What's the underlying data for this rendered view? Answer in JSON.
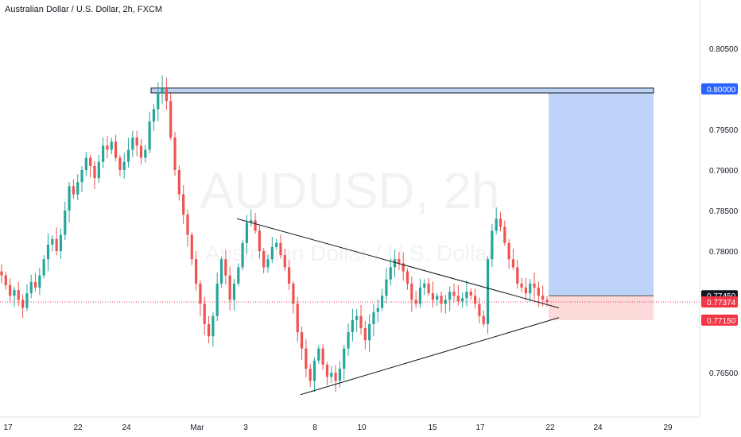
{
  "header": {
    "title": "Australian Dollar / U.S. Dollar, 2h, FXCM"
  },
  "watermark": {
    "symbol": "AUDUSD, 2h",
    "name": "Australian Dollar / U.S. Dollar"
  },
  "colors": {
    "up": "#26a69a",
    "down": "#ef5350",
    "target_zone": "#b3cbf8",
    "stop_zone": "#fcd6d6",
    "target_label_bg": "#2962ff",
    "stop_label_bg": "#f23645",
    "entry_label_bg": "#131722",
    "current_price_line": "#f23645",
    "resistance_box": "#bdd2f5",
    "trendline": "#131722"
  },
  "chart_data": {
    "type": "candlestick",
    "title": "Australian Dollar / U.S. Dollar, 2h, FXCM",
    "ylim": [
      0.761,
      0.809
    ],
    "y_ticks": [
      "0.80500",
      "0.79500",
      "0.79000",
      "0.78500",
      "0.78000",
      "0.76500"
    ],
    "x_ticks": [
      "17",
      "22",
      "24",
      "Mar",
      "3",
      "8",
      "10",
      "15",
      "17",
      "22",
      "24",
      "29"
    ],
    "price_labels": {
      "target": {
        "value": 0.8,
        "text": "0.80000"
      },
      "entry": {
        "value": 0.7745,
        "text": "0.77450"
      },
      "current": {
        "value": 0.77374,
        "text": "0.77374"
      },
      "stop": {
        "value": 0.7715,
        "text": "0.77150"
      }
    },
    "annotations": {
      "resistance_box": {
        "y_range": [
          0.7995,
          0.8001
        ]
      },
      "long_position": {
        "entry": 0.7745,
        "target": 0.8,
        "stop": 0.7715
      },
      "triangle": {
        "upper_line": [
          [
            0.784
          ],
          [
            0.7728
          ]
        ],
        "lower_line": [
          [
            0.7623
          ],
          [
            0.7722
          ]
        ],
        "apex": 0.773
      }
    },
    "grid": false,
    "candle_path": [
      0.777,
      0.7758,
      0.7745,
      0.7752,
      0.774,
      0.773,
      0.7748,
      0.7762,
      0.7755,
      0.777,
      0.779,
      0.7808,
      0.7815,
      0.78,
      0.782,
      0.785,
      0.788,
      0.787,
      0.7885,
      0.79,
      0.7915,
      0.7905,
      0.789,
      0.791,
      0.793,
      0.7925,
      0.7935,
      0.7915,
      0.79,
      0.791,
      0.7925,
      0.794,
      0.793,
      0.7915,
      0.7925,
      0.796,
      0.7975,
      0.7995,
      0.8002,
      0.7985,
      0.794,
      0.79,
      0.787,
      0.7845,
      0.782,
      0.779,
      0.776,
      0.7735,
      0.771,
      0.7695,
      0.772,
      0.776,
      0.779,
      0.777,
      0.774,
      0.776,
      0.778,
      0.781,
      0.7835,
      0.7838,
      0.7825,
      0.78,
      0.778,
      0.779,
      0.7805,
      0.781,
      0.7795,
      0.778,
      0.776,
      0.7735,
      0.77,
      0.768,
      0.7655,
      0.764,
      0.7665,
      0.768,
      0.766,
      0.7645,
      0.765,
      0.764,
      0.7655,
      0.768,
      0.77,
      0.7715,
      0.772,
      0.7705,
      0.769,
      0.771,
      0.7725,
      0.773,
      0.7745,
      0.7765,
      0.778,
      0.779,
      0.7785,
      0.7775,
      0.776,
      0.774,
      0.7735,
      0.7755,
      0.776,
      0.7748,
      0.774,
      0.7745,
      0.7735,
      0.774,
      0.775,
      0.7745,
      0.7738,
      0.7742,
      0.775,
      0.7745,
      0.7735,
      0.772,
      0.771,
      0.779,
      0.7825,
      0.784,
      0.783,
      0.781,
      0.779,
      0.778,
      0.776,
      0.7755,
      0.7748,
      0.776,
      0.7755,
      0.7745,
      0.774,
      0.7737
    ]
  }
}
